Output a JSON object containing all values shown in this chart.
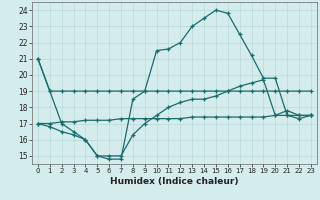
{
  "xlabel": "Humidex (Indice chaleur)",
  "background_color": "#d4ecec",
  "grid_color": "#b8d8d8",
  "line_color": "#1a6b6b",
  "xlim": [
    -0.5,
    23.5
  ],
  "ylim": [
    14.5,
    24.5
  ],
  "yticks": [
    15,
    16,
    17,
    18,
    19,
    20,
    21,
    22,
    23,
    24
  ],
  "xticks": [
    0,
    1,
    2,
    3,
    4,
    5,
    6,
    7,
    8,
    9,
    10,
    11,
    12,
    13,
    14,
    15,
    16,
    17,
    18,
    19,
    20,
    21,
    22,
    23
  ],
  "series": [
    {
      "x": [
        0,
        1,
        2,
        3,
        4,
        5,
        6,
        7,
        8,
        9,
        10,
        11,
        12,
        13,
        14,
        15,
        16,
        17,
        18,
        19,
        20,
        21,
        22,
        23
      ],
      "y": [
        21,
        19,
        19,
        19,
        19,
        19,
        19,
        19,
        19,
        19,
        19,
        19,
        19,
        19,
        19,
        19,
        19,
        19,
        19,
        19,
        19,
        19,
        19,
        19
      ]
    },
    {
      "x": [
        0,
        1,
        2,
        3,
        4,
        5,
        6,
        7,
        8,
        9,
        10,
        11,
        12,
        13,
        14,
        15,
        16,
        17,
        18,
        19,
        20,
        21,
        22,
        23
      ],
      "y": [
        21,
        19,
        17,
        16.5,
        16,
        15,
        14.8,
        14.8,
        18.5,
        19.0,
        21.5,
        21.6,
        22.0,
        23.0,
        23.5,
        24.0,
        23.8,
        22.5,
        21.2,
        19.8,
        19.8,
        17.5,
        17.3,
        17.5
      ]
    },
    {
      "x": [
        0,
        1,
        2,
        3,
        4,
        5,
        6,
        7,
        8,
        9,
        10,
        11,
        12,
        13,
        14,
        15,
        16,
        17,
        18,
        19,
        20,
        21,
        22,
        23
      ],
      "y": [
        17.0,
        17.0,
        17.1,
        17.1,
        17.2,
        17.2,
        17.2,
        17.3,
        17.3,
        17.3,
        17.3,
        17.3,
        17.3,
        17.4,
        17.4,
        17.4,
        17.4,
        17.4,
        17.4,
        17.4,
        17.5,
        17.5,
        17.5,
        17.5
      ]
    },
    {
      "x": [
        0,
        1,
        2,
        3,
        4,
        5,
        6,
        7,
        8,
        9,
        10,
        11,
        12,
        13,
        14,
        15,
        16,
        17,
        18,
        19,
        20,
        21,
        22,
        23
      ],
      "y": [
        17.0,
        16.8,
        16.5,
        16.3,
        16.0,
        15.0,
        15.0,
        15.0,
        16.3,
        17.0,
        17.5,
        18.0,
        18.3,
        18.5,
        18.5,
        18.7,
        19.0,
        19.3,
        19.5,
        19.7,
        17.5,
        17.8,
        17.5,
        17.5
      ]
    }
  ]
}
